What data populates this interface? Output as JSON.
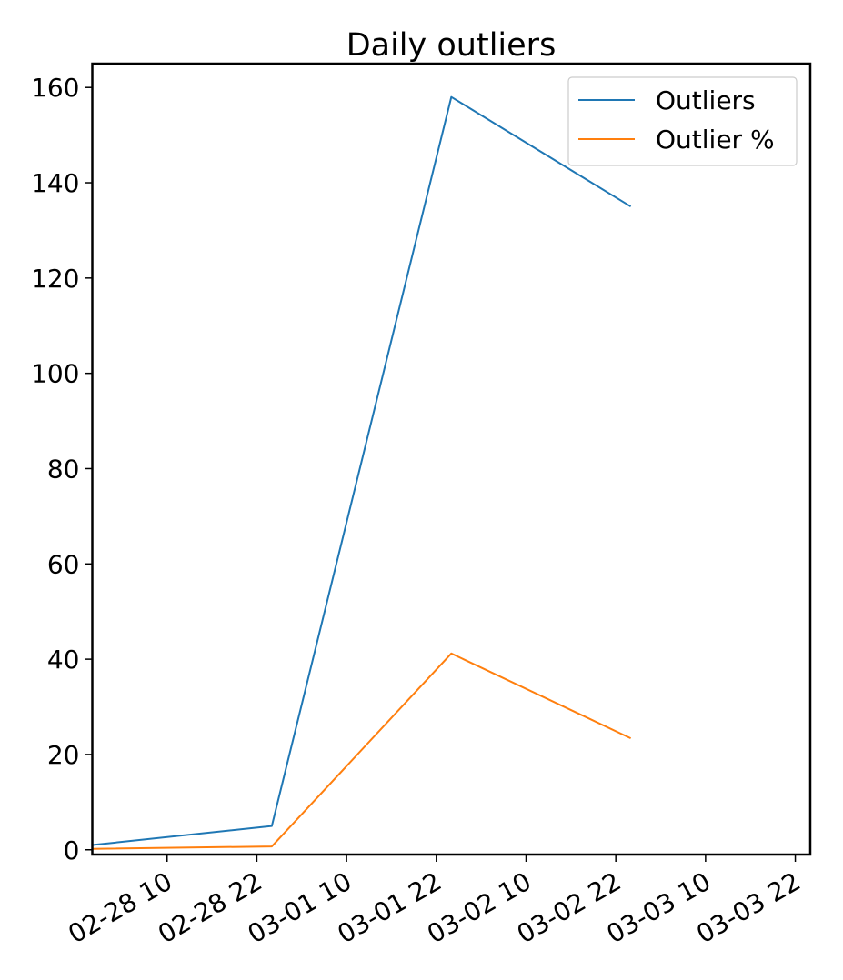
{
  "chart_data": {
    "type": "line",
    "title": "Daily outliers",
    "xlabel": "",
    "ylabel": "",
    "x": [
      "02-28 00",
      "03-01 00",
      "03-02 00",
      "03-03 00"
    ],
    "x_ticks": [
      "02-28 10",
      "02-28 22",
      "03-01 10",
      "03-01 22",
      "03-02 10",
      "03-02 22",
      "03-03 10",
      "03-03 22"
    ],
    "y_ticks": [
      0,
      20,
      40,
      60,
      80,
      100,
      120,
      140,
      160
    ],
    "xlim": [
      "02-28 00",
      "03-04 00"
    ],
    "ylim": [
      -1,
      165
    ],
    "grid": false,
    "legend_position": "top-right",
    "series": [
      {
        "name": "Outliers",
        "color": "#1f77b4",
        "values": [
          1,
          5,
          158,
          135
        ]
      },
      {
        "name": "Outlier %",
        "color": "#ff7f0e",
        "values": [
          0.2,
          0.7,
          41.2,
          23.4
        ]
      }
    ]
  }
}
